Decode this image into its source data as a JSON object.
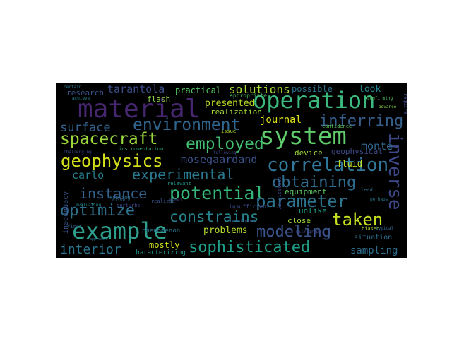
{
  "words": [
    {
      "id": "material",
      "text": "material",
      "color": "#46276f"
    },
    {
      "id": "operation",
      "text": "operation",
      "color": "#3bb97e"
    },
    {
      "id": "system",
      "text": "system",
      "color": "#5fcd6b"
    },
    {
      "id": "example",
      "text": "example",
      "color": "#2ea08d"
    },
    {
      "id": "correlation",
      "text": "correlation",
      "color": "#30789a"
    },
    {
      "id": "environment",
      "text": "environment",
      "color": "#31678e"
    },
    {
      "id": "spacecraft",
      "text": "spacecraft",
      "color": "#9bd93c"
    },
    {
      "id": "geophysics",
      "text": "geophysics",
      "color": "#d7e11b"
    },
    {
      "id": "employed",
      "text": "employed",
      "color": "#42be71"
    },
    {
      "id": "inferring",
      "text": "inferring",
      "color": "#355f8d"
    },
    {
      "id": "surface",
      "text": "surface",
      "color": "#33638d"
    },
    {
      "id": "experimental",
      "text": "experimental",
      "color": "#2a788e"
    },
    {
      "id": "obtaining",
      "text": "obtaining",
      "color": "#2f6c8e"
    },
    {
      "id": "potential",
      "text": "potential",
      "color": "#35b779"
    },
    {
      "id": "instance",
      "text": "instance",
      "color": "#34618d"
    },
    {
      "id": "parameter",
      "text": "parameter",
      "color": "#2c738e"
    },
    {
      "id": "inverse",
      "text": "inverse",
      "color": "#3e4989"
    },
    {
      "id": "optimize",
      "text": "optimize",
      "color": "#2d708e"
    },
    {
      "id": "constrains",
      "text": "constrains",
      "color": "#26828e"
    },
    {
      "id": "taken",
      "text": "taken",
      "color": "#c7e020"
    },
    {
      "id": "modeling",
      "text": "modeling",
      "color": "#3a548c"
    },
    {
      "id": "sophisticated",
      "text": "sophisticated",
      "color": "#1f9e89"
    },
    {
      "id": "interior",
      "text": "interior",
      "color": "#2a768e"
    },
    {
      "id": "tarantola",
      "text": "tarantola",
      "color": "#3d4e8a"
    },
    {
      "id": "solutions",
      "text": "solutions",
      "color": "#a8db34"
    },
    {
      "id": "practical",
      "text": "practical",
      "color": "#56c667"
    },
    {
      "id": "presented",
      "text": "presented",
      "color": "#bddf26"
    },
    {
      "id": "realization",
      "text": "realization",
      "color": "#a0da39"
    },
    {
      "id": "journal",
      "text": "journal",
      "color": "#dde318"
    },
    {
      "id": "mosegaardand",
      "text": "mosegaardand",
      "color": "#3b528b"
    },
    {
      "id": "monte",
      "text": "monte",
      "color": "#31688e"
    },
    {
      "id": "carlo",
      "text": "carlo",
      "color": "#27808e"
    },
    {
      "id": "fluid",
      "text": "fluid",
      "color": "#c2df23"
    },
    {
      "id": "device",
      "text": "device",
      "color": "#9fda3a"
    },
    {
      "id": "geophysical",
      "text": "geophysical",
      "color": "#3e4a89"
    },
    {
      "id": "equipment",
      "text": "equipment",
      "color": "#5ec962"
    },
    {
      "id": "problems",
      "text": "problems",
      "color": "#b5de2b"
    },
    {
      "id": "mostly",
      "text": "mostly",
      "color": "#d2e21b"
    },
    {
      "id": "sampling",
      "text": "sampling",
      "color": "#2e6f8e"
    },
    {
      "id": "research",
      "text": "research",
      "color": "#3a538b"
    },
    {
      "id": "flash",
      "text": "flash",
      "color": "#8fd744"
    },
    {
      "id": "possible",
      "text": "possible",
      "color": "#2d708e"
    },
    {
      "id": "look",
      "text": "look",
      "color": "#25858e"
    },
    {
      "id": "close",
      "text": "close",
      "color": "#a0da39"
    },
    {
      "id": "unlike",
      "text": "unlike",
      "color": "#1e9d89"
    },
    {
      "id": "situation",
      "text": "situation",
      "color": "#2e6e8e"
    },
    {
      "id": "phenomenon",
      "text": "phenomenon",
      "color": "#2c738e"
    },
    {
      "id": "inadequacy",
      "text": "inadequacy",
      "color": "#3a538b"
    },
    {
      "id": "characterizing",
      "text": "characterizing",
      "color": "#1f958b"
    },
    {
      "id": "instrumentation",
      "text": "instrumentation",
      "color": "#27ad81"
    },
    {
      "id": "appropriate",
      "text": "appropriate",
      "color": "#48c16e"
    },
    {
      "id": "confidence",
      "text": "confidence",
      "color": "#5ec962"
    },
    {
      "id": "issue",
      "text": "issue",
      "color": "#b2dd2d"
    },
    {
      "id": "consistency",
      "text": "consistency",
      "color": "#3f4788"
    },
    {
      "id": "insufficient",
      "text": "insufficient",
      "color": "#3e4c8a"
    },
    {
      "id": "biased",
      "text": "biased",
      "color": "#aadc32"
    },
    {
      "id": "lead",
      "text": "lead",
      "color": "#2c728e"
    },
    {
      "id": "relevant",
      "text": "relevant",
      "color": "#1f988b"
    },
    {
      "id": "perturbs",
      "text": "perturbs",
      "color": "#3f4788"
    },
    {
      "id": "realized",
      "text": "realized",
      "color": "#3a548c"
    },
    {
      "id": "knowing",
      "text": "knowing",
      "color": "#2d708e"
    },
    {
      "id": "confirming",
      "text": "confirming",
      "color": "#5cc863"
    },
    {
      "id": "micrography",
      "text": "micrography",
      "color": "#3f4788"
    },
    {
      "id": "considered",
      "text": "considered",
      "color": "#3b528b"
    },
    {
      "id": "challenging",
      "text": "challenging",
      "color": "#3e4989"
    },
    {
      "id": "following",
      "text": "following",
      "color": "#3f4788"
    },
    {
      "id": "perhaps",
      "text": "perhaps",
      "color": "#2a788e"
    },
    {
      "id": "achieve",
      "text": "achieve",
      "color": "#25848e"
    },
    {
      "id": "approach",
      "text": "approach",
      "color": "#2c728e"
    },
    {
      "id": "first",
      "text": "first",
      "color": "#33638d"
    },
    {
      "id": "typical",
      "text": "typical",
      "color": "#31688e"
    },
    {
      "id": "model",
      "text": "model",
      "color": "#3f4788"
    },
    {
      "id": "allow",
      "text": "allow",
      "color": "#355f8d"
    },
    {
      "id": "require",
      "text": "require",
      "color": "#3e4989"
    },
    {
      "id": "evaluating",
      "text": "evaluating",
      "color": "#23898e"
    },
    {
      "id": "certain",
      "text": "certain",
      "color": "#2a778e"
    },
    {
      "id": "advance",
      "text": "advance",
      "color": "#8fd744"
    }
  ]
}
